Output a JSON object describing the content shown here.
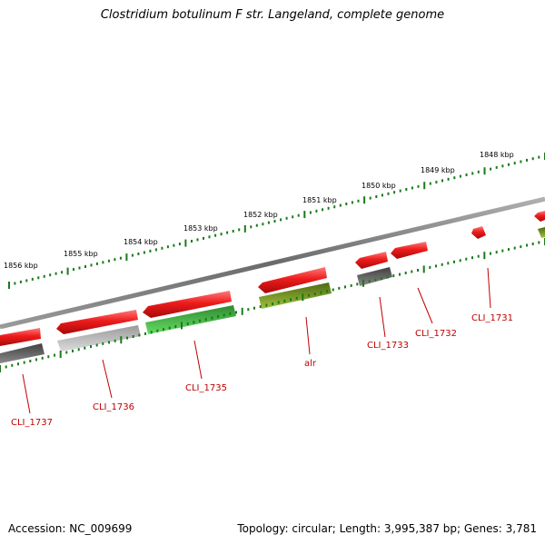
{
  "title": "Clostridium botulinum F str. Langeland, complete genome",
  "footer": {
    "accession": "Accession: NC_009699",
    "topology": "Topology: circular; Length: 3,995,387 bp; Genes: 3,781"
  },
  "ruler": {
    "ticks": [
      {
        "label": "1856 kbp"
      },
      {
        "label": "1855 kbp"
      },
      {
        "label": "1854 kbp"
      },
      {
        "label": "1853 kbp"
      },
      {
        "label": "1852 kbp"
      },
      {
        "label": "1851 kbp"
      },
      {
        "label": "1850 kbp"
      },
      {
        "label": "1849 kbp"
      },
      {
        "label": "1848 kbp"
      }
    ]
  },
  "genes": [
    {
      "label": "CLI_1737"
    },
    {
      "label": "CLI_1736"
    },
    {
      "label": "CLI_1735"
    },
    {
      "label": "alr"
    },
    {
      "label": "CLI_1733"
    },
    {
      "label": "CLI_1732"
    },
    {
      "label": "CLI_1731"
    }
  ],
  "colors": {
    "gene_red": "#e8141c",
    "backbone": "#808080",
    "tick_green": "#1a7a1a",
    "label_red": "#c00000"
  }
}
